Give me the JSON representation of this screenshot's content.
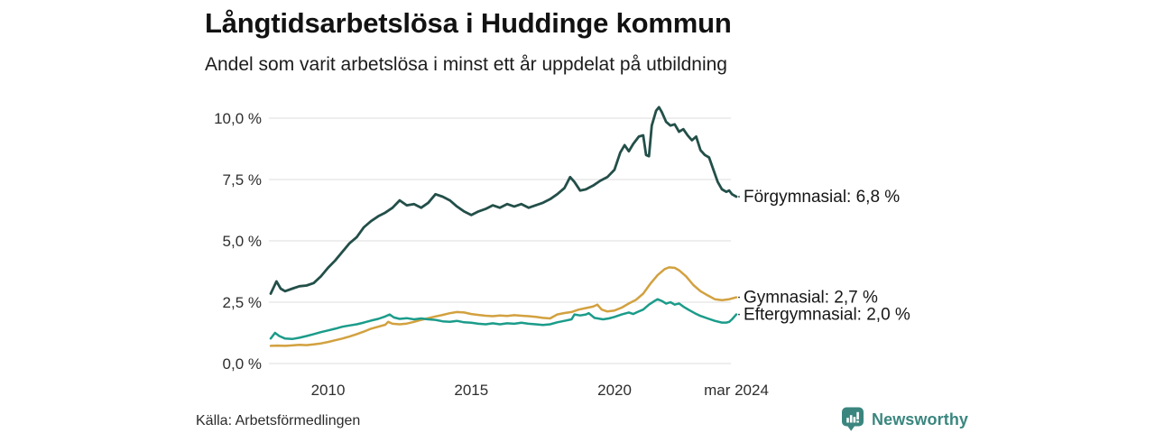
{
  "header": {
    "title": "Långtidsarbetslösa i Huddinge kommun",
    "subtitle": "Andel som varit arbetslösa i minst ett år uppdelat på utbildning"
  },
  "footer": {
    "source": "Källa: Arbetsförmedlingen",
    "brand": "Newsworthy",
    "brand_icon": "bar-chart-speech-bubble-icon",
    "brand_color": "#3a867f"
  },
  "chart_data": {
    "type": "line",
    "title": "Långtidsarbetslösa i Huddinge kommun",
    "subtitle": "Andel som varit arbetslösa i minst ett år uppdelat på utbildning",
    "grid": "horizontal",
    "legend_position": "end-of-line-labels",
    "xlim": [
      2008.0,
      2024.25
    ],
    "ylim": [
      0,
      10.0
    ],
    "grid_color": "#e3e3e3",
    "y_ticks": [
      {
        "label": "10,0 %",
        "value": 10.0
      },
      {
        "label": "7,5 %",
        "value": 7.5
      },
      {
        "label": "5,0 %",
        "value": 5.0
      },
      {
        "label": "2,5 %",
        "value": 2.5
      },
      {
        "label": "0,0 %",
        "value": 0.0
      }
    ],
    "x_ticks": [
      {
        "label": "2010",
        "year": 2010
      },
      {
        "label": "2015",
        "year": 2015
      },
      {
        "label": "2020",
        "year": 2020
      },
      {
        "label": "mar 2024",
        "year": 2024.25
      }
    ],
    "series": [
      {
        "name": "Förgymnasial",
        "end_label": "Förgymnasial: 6,8 %",
        "end_value": 6.8,
        "color": "#234f49",
        "x": [
          2008.0,
          2008.1,
          2008.2,
          2008.35,
          2008.5,
          2008.75,
          2009.0,
          2009.25,
          2009.5,
          2009.75,
          2010.0,
          2010.25,
          2010.5,
          2010.75,
          2011.0,
          2011.25,
          2011.5,
          2011.75,
          2012.0,
          2012.25,
          2012.5,
          2012.75,
          2013.0,
          2013.25,
          2013.5,
          2013.75,
          2014.0,
          2014.25,
          2014.5,
          2014.75,
          2015.0,
          2015.25,
          2015.5,
          2015.75,
          2016.0,
          2016.25,
          2016.5,
          2016.75,
          2017.0,
          2017.25,
          2017.5,
          2017.75,
          2018.0,
          2018.25,
          2018.45,
          2018.6,
          2018.8,
          2019.0,
          2019.25,
          2019.5,
          2019.75,
          2020.0,
          2020.2,
          2020.35,
          2020.5,
          2020.65,
          2020.85,
          2021.0,
          2021.1,
          2021.2,
          2021.3,
          2021.45,
          2021.55,
          2021.65,
          2021.8,
          2021.95,
          2022.1,
          2022.25,
          2022.4,
          2022.55,
          2022.7,
          2022.85,
          2023.0,
          2023.15,
          2023.3,
          2023.45,
          2023.6,
          2023.75,
          2023.9,
          2024.0,
          2024.1,
          2024.25
        ],
        "values": [
          2.85,
          3.1,
          3.35,
          3.05,
          2.95,
          3.05,
          3.15,
          3.18,
          3.28,
          3.55,
          3.9,
          4.2,
          4.55,
          4.9,
          5.15,
          5.55,
          5.8,
          6.0,
          6.15,
          6.35,
          6.65,
          6.45,
          6.5,
          6.35,
          6.55,
          6.9,
          6.8,
          6.65,
          6.4,
          6.2,
          6.05,
          6.2,
          6.3,
          6.45,
          6.35,
          6.5,
          6.4,
          6.5,
          6.35,
          6.45,
          6.55,
          6.7,
          6.9,
          7.15,
          7.6,
          7.4,
          7.05,
          7.1,
          7.25,
          7.45,
          7.6,
          7.9,
          8.6,
          8.9,
          8.65,
          8.95,
          9.25,
          9.3,
          8.5,
          8.45,
          9.7,
          10.3,
          10.45,
          10.25,
          9.85,
          9.7,
          9.75,
          9.45,
          9.55,
          9.3,
          9.1,
          9.25,
          8.7,
          8.5,
          8.4,
          7.9,
          7.4,
          7.1,
          7.0,
          7.05,
          6.9,
          6.8
        ]
      },
      {
        "name": "Gymnasial",
        "end_label": "Gymnasial: 2,7 %",
        "end_value": 2.7,
        "color": "#d2a13f",
        "x": [
          2008.0,
          2008.25,
          2008.5,
          2008.75,
          2009.0,
          2009.25,
          2009.5,
          2009.75,
          2010.0,
          2010.25,
          2010.5,
          2010.75,
          2011.0,
          2011.25,
          2011.5,
          2011.75,
          2012.0,
          2012.1,
          2012.25,
          2012.5,
          2012.75,
          2013.0,
          2013.25,
          2013.5,
          2013.75,
          2014.0,
          2014.25,
          2014.5,
          2014.75,
          2015.0,
          2015.25,
          2015.5,
          2015.75,
          2016.0,
          2016.25,
          2016.5,
          2016.75,
          2017.0,
          2017.25,
          2017.5,
          2017.75,
          2018.0,
          2018.25,
          2018.5,
          2018.75,
          2019.0,
          2019.25,
          2019.4,
          2019.55,
          2019.75,
          2020.0,
          2020.25,
          2020.5,
          2020.75,
          2021.0,
          2021.25,
          2021.5,
          2021.75,
          2021.9,
          2022.1,
          2022.25,
          2022.5,
          2022.75,
          2023.0,
          2023.25,
          2023.5,
          2023.75,
          2024.0,
          2024.25
        ],
        "values": [
          0.72,
          0.73,
          0.72,
          0.74,
          0.76,
          0.75,
          0.78,
          0.82,
          0.88,
          0.95,
          1.02,
          1.1,
          1.2,
          1.3,
          1.42,
          1.5,
          1.58,
          1.7,
          1.62,
          1.6,
          1.63,
          1.7,
          1.78,
          1.85,
          1.92,
          1.98,
          2.05,
          2.1,
          2.08,
          2.02,
          1.98,
          1.95,
          1.93,
          1.96,
          1.94,
          1.97,
          1.95,
          1.93,
          1.9,
          1.86,
          1.84,
          2.0,
          2.06,
          2.1,
          2.2,
          2.26,
          2.32,
          2.4,
          2.2,
          2.12,
          2.16,
          2.28,
          2.45,
          2.6,
          2.85,
          3.25,
          3.6,
          3.85,
          3.92,
          3.9,
          3.8,
          3.55,
          3.2,
          2.95,
          2.78,
          2.62,
          2.58,
          2.62,
          2.7
        ]
      },
      {
        "name": "Eftergymnasial",
        "end_label": "Eftergymnasial: 2,0 %",
        "end_value": 2.0,
        "color": "#1b9c8a",
        "x": [
          2008.0,
          2008.15,
          2008.3,
          2008.5,
          2008.75,
          2009.0,
          2009.25,
          2009.5,
          2009.75,
          2010.0,
          2010.25,
          2010.5,
          2010.75,
          2011.0,
          2011.25,
          2011.5,
          2011.75,
          2012.0,
          2012.15,
          2012.3,
          2012.5,
          2012.75,
          2013.0,
          2013.25,
          2013.5,
          2013.75,
          2014.0,
          2014.25,
          2014.5,
          2014.75,
          2015.0,
          2015.25,
          2015.5,
          2015.75,
          2016.0,
          2016.25,
          2016.5,
          2016.75,
          2017.0,
          2017.25,
          2017.5,
          2017.75,
          2018.0,
          2018.25,
          2018.5,
          2018.6,
          2018.8,
          2019.0,
          2019.1,
          2019.3,
          2019.6,
          2019.8,
          2020.0,
          2020.25,
          2020.5,
          2020.65,
          2020.8,
          2021.0,
          2021.2,
          2021.4,
          2021.5,
          2021.65,
          2021.8,
          2021.95,
          2022.1,
          2022.25,
          2022.4,
          2022.6,
          2022.8,
          2023.0,
          2023.25,
          2023.5,
          2023.75,
          2023.9,
          2024.0,
          2024.1,
          2024.25
        ],
        "values": [
          1.02,
          1.25,
          1.12,
          1.02,
          1.0,
          1.05,
          1.12,
          1.2,
          1.28,
          1.35,
          1.42,
          1.5,
          1.55,
          1.6,
          1.67,
          1.75,
          1.82,
          1.92,
          2.0,
          1.88,
          1.82,
          1.85,
          1.8,
          1.84,
          1.8,
          1.78,
          1.72,
          1.7,
          1.74,
          1.68,
          1.66,
          1.62,
          1.6,
          1.64,
          1.6,
          1.64,
          1.62,
          1.66,
          1.62,
          1.6,
          1.57,
          1.6,
          1.68,
          1.74,
          1.8,
          2.0,
          1.96,
          2.0,
          2.05,
          1.86,
          1.8,
          1.84,
          1.9,
          2.0,
          2.08,
          2.02,
          2.1,
          2.2,
          2.4,
          2.55,
          2.62,
          2.55,
          2.44,
          2.5,
          2.4,
          2.45,
          2.32,
          2.18,
          2.05,
          1.94,
          1.84,
          1.74,
          1.67,
          1.67,
          1.7,
          1.8,
          2.0
        ]
      }
    ]
  }
}
